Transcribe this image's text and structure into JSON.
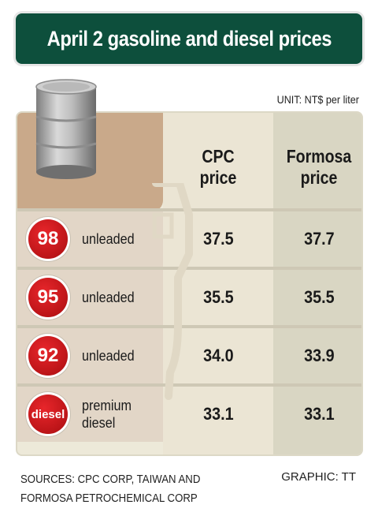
{
  "title": "April 2 gasoline and diesel prices",
  "unit": "UNIT: NT$ per liter",
  "chart_data": {
    "type": "table",
    "columns": [
      {
        "line1": "CPC",
        "line2": "price"
      },
      {
        "line1": "Formosa",
        "line2": "price"
      }
    ],
    "rows": [
      {
        "badge": "98",
        "label1": "unleaded",
        "label2": "",
        "cpc": "37.5",
        "formosa": "37.7"
      },
      {
        "badge": "95",
        "label1": "unleaded",
        "label2": "",
        "cpc": "35.5",
        "formosa": "35.5"
      },
      {
        "badge": "92",
        "label1": "unleaded",
        "label2": "",
        "cpc": "34.0",
        "formosa": "33.9"
      },
      {
        "badge": "diesel",
        "label1": "premium",
        "label2": "diesel",
        "cpc": "33.1",
        "formosa": "33.1"
      }
    ]
  },
  "sources": {
    "line1": "SOURCES: CPC CORP, TAIWAN AND",
    "line2": "FORMOSA PETROCHEMICAL CORP"
  },
  "graphic_credit": "GRAPHIC: TT",
  "colors": {
    "title_bg": "#0d4f3c",
    "badge": "#d41a1f",
    "tan": "#c9a98a",
    "panel": "#ede9d9"
  },
  "icons": [
    "oil-barrel-icon",
    "fuel-pump-icon"
  ]
}
